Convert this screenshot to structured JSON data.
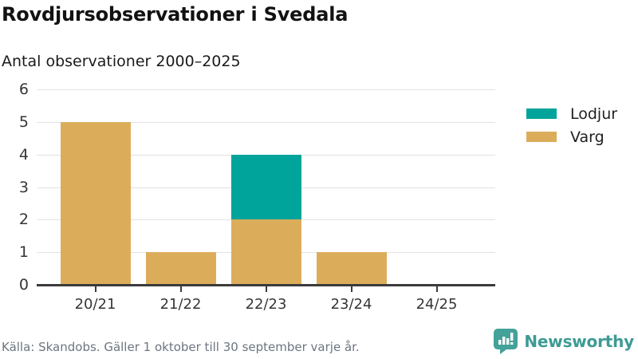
{
  "header": {
    "title": "Rovdjursobservationer i Svedala",
    "subtitle": "Antal observationer 2000–2025"
  },
  "chart_data": {
    "type": "bar",
    "stacked": true,
    "title": "Rovdjursobservationer i Svedala",
    "subtitle": "Antal observationer 2000–2025",
    "categories": [
      "20/21",
      "21/22",
      "22/23",
      "23/24",
      "24/25"
    ],
    "series": [
      {
        "name": "Lodjur",
        "color": "#00a49a",
        "values": [
          0,
          0,
          2,
          0,
          0
        ]
      },
      {
        "name": "Varg",
        "color": "#dbad5b",
        "values": [
          5,
          1,
          2,
          1,
          0
        ]
      }
    ],
    "xlabel": "",
    "ylabel": "",
    "ylim": [
      0,
      6
    ],
    "yticks": [
      0,
      1,
      2,
      3,
      4,
      5,
      6
    ],
    "grid": true,
    "legend_position": "right"
  },
  "footer": {
    "source": "Källa: Skandobs. Gäller 1 oktober till 30 september varje år.",
    "brand": "Newsworthy"
  },
  "icons": {
    "brand_icon": "newsworthy-speech-bubble-barchart-icon"
  },
  "colors": {
    "lodjur_teal": "#00a49a",
    "varg_tan": "#dbad5b",
    "brand_teal": "#3d9b94",
    "brand_icon_teal": "#44a29a",
    "axis": "#3b3b3b",
    "grid": "#e2e2e2",
    "text_dark": "#121212",
    "footer_text": "#6d7580"
  }
}
